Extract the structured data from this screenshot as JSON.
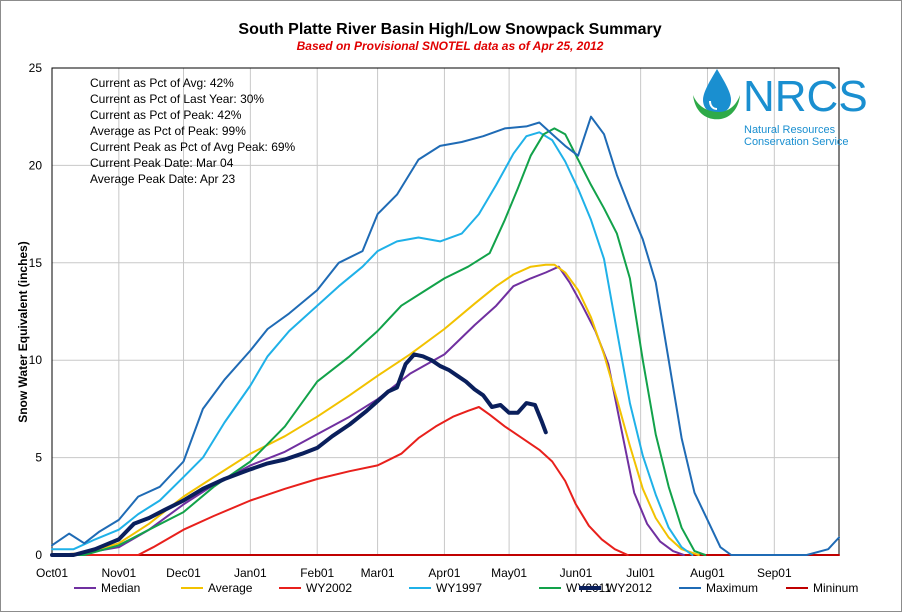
{
  "chart_data": {
    "type": "line",
    "title": "South Platte River Basin High/Low Snowpack Summary",
    "subtitle": "Based on Provisional SNOTEL data as of Apr 25, 2012",
    "ylabel": "Snow Water Equivalent (inches)",
    "xlabel": "",
    "ylim": [
      0,
      25
    ],
    "yticks": [
      "0",
      "5",
      "10",
      "15",
      "20",
      "25"
    ],
    "xticks": [
      "Oct01",
      "Nov01",
      "Dec01",
      "Jan01",
      "Feb01",
      "Mar01",
      "Apr01",
      "May01",
      "Jun01",
      "Jul01",
      "Aug01",
      "Sep01"
    ],
    "stats": [
      "Current as Pct of Avg: 42%",
      "Current as Pct of Last Year: 30%",
      "Current as Pct of Peak: 42%",
      "Average as Pct of Peak: 99%",
      "Current Peak as Pct of Avg Peak: 69%",
      "Current Peak Date: Mar 04",
      "Average Peak Date: Apr 23"
    ],
    "legend_position": "bottom",
    "grid": true,
    "series": [
      {
        "name": "Median",
        "color": "#7030a0",
        "width": 2,
        "points": [
          [
            0,
            0
          ],
          [
            15,
            0.1
          ],
          [
            31,
            0.4
          ],
          [
            45,
            1.3
          ],
          [
            61,
            2.6
          ],
          [
            75,
            3.6
          ],
          [
            92,
            4.6
          ],
          [
            108,
            5.3
          ],
          [
            123,
            6.2
          ],
          [
            138,
            7.1
          ],
          [
            151,
            8.0
          ],
          [
            166,
            9.3
          ],
          [
            182,
            10.3
          ],
          [
            196,
            11.8
          ],
          [
            206,
            12.8
          ],
          [
            214,
            13.8
          ],
          [
            222,
            14.2
          ],
          [
            229,
            14.5
          ],
          [
            235,
            14.8
          ],
          [
            240,
            14.0
          ],
          [
            246,
            12.8
          ],
          [
            252,
            11.5
          ],
          [
            258,
            9.8
          ],
          [
            264,
            6.5
          ],
          [
            270,
            3.2
          ],
          [
            276,
            1.6
          ],
          [
            282,
            0.7
          ],
          [
            288,
            0.2
          ],
          [
            293,
            0
          ]
        ]
      },
      {
        "name": "Average",
        "color": "#f2c200",
        "width": 2,
        "points": [
          [
            0,
            0
          ],
          [
            15,
            0.1
          ],
          [
            31,
            0.6
          ],
          [
            45,
            1.6
          ],
          [
            61,
            3.0
          ],
          [
            75,
            4.0
          ],
          [
            92,
            5.2
          ],
          [
            108,
            6.1
          ],
          [
            123,
            7.1
          ],
          [
            138,
            8.2
          ],
          [
            151,
            9.2
          ],
          [
            166,
            10.3
          ],
          [
            182,
            11.6
          ],
          [
            196,
            12.9
          ],
          [
            206,
            13.8
          ],
          [
            214,
            14.4
          ],
          [
            222,
            14.8
          ],
          [
            229,
            14.9
          ],
          [
            233,
            14.9
          ],
          [
            238,
            14.5
          ],
          [
            244,
            13.6
          ],
          [
            250,
            12.2
          ],
          [
            256,
            10.3
          ],
          [
            262,
            8.0
          ],
          [
            268,
            5.6
          ],
          [
            274,
            3.4
          ],
          [
            280,
            1.9
          ],
          [
            286,
            0.9
          ],
          [
            292,
            0.3
          ],
          [
            300,
            0
          ]
        ]
      },
      {
        "name": "WY2002",
        "color": "#e8201c",
        "width": 2,
        "points": [
          [
            0,
            0
          ],
          [
            15,
            0
          ],
          [
            31,
            0
          ],
          [
            40,
            0
          ],
          [
            47,
            0.4
          ],
          [
            61,
            1.3
          ],
          [
            75,
            2.0
          ],
          [
            92,
            2.8
          ],
          [
            108,
            3.4
          ],
          [
            123,
            3.9
          ],
          [
            138,
            4.3
          ],
          [
            151,
            4.6
          ],
          [
            162,
            5.2
          ],
          [
            170,
            6.0
          ],
          [
            178,
            6.6
          ],
          [
            186,
            7.1
          ],
          [
            193,
            7.4
          ],
          [
            198,
            7.6
          ],
          [
            203,
            7.2
          ],
          [
            210,
            6.6
          ],
          [
            218,
            6.0
          ],
          [
            226,
            5.4
          ],
          [
            232,
            4.8
          ],
          [
            238,
            3.8
          ],
          [
            243,
            2.6
          ],
          [
            249,
            1.5
          ],
          [
            255,
            0.8
          ],
          [
            261,
            0.3
          ],
          [
            267,
            0
          ]
        ]
      },
      {
        "name": "WY1997",
        "color": "#1fb1e8",
        "width": 2,
        "points": [
          [
            0,
            0.3
          ],
          [
            10,
            0.3
          ],
          [
            20,
            0.8
          ],
          [
            31,
            1.3
          ],
          [
            40,
            2.1
          ],
          [
            50,
            2.8
          ],
          [
            61,
            4.0
          ],
          [
            70,
            5.0
          ],
          [
            80,
            6.8
          ],
          [
            92,
            8.7
          ],
          [
            100,
            10.2
          ],
          [
            110,
            11.5
          ],
          [
            123,
            12.8
          ],
          [
            133,
            13.8
          ],
          [
            144,
            14.8
          ],
          [
            151,
            15.6
          ],
          [
            160,
            16.1
          ],
          [
            170,
            16.3
          ],
          [
            180,
            16.1
          ],
          [
            190,
            16.5
          ],
          [
            198,
            17.5
          ],
          [
            206,
            19.0
          ],
          [
            214,
            20.6
          ],
          [
            220,
            21.5
          ],
          [
            226,
            21.7
          ],
          [
            232,
            21.3
          ],
          [
            238,
            20.2
          ],
          [
            244,
            18.8
          ],
          [
            250,
            17.2
          ],
          [
            256,
            15.2
          ],
          [
            262,
            11.5
          ],
          [
            268,
            7.8
          ],
          [
            274,
            5.1
          ],
          [
            280,
            3.1
          ],
          [
            286,
            1.4
          ],
          [
            292,
            0.4
          ],
          [
            297,
            0
          ]
        ]
      },
      {
        "name": "WY2011",
        "color": "#12a24a",
        "width": 2,
        "points": [
          [
            0,
            0
          ],
          [
            15,
            0
          ],
          [
            31,
            0.5
          ],
          [
            45,
            1.3
          ],
          [
            61,
            2.2
          ],
          [
            75,
            3.5
          ],
          [
            92,
            4.8
          ],
          [
            108,
            6.6
          ],
          [
            123,
            8.9
          ],
          [
            138,
            10.2
          ],
          [
            151,
            11.5
          ],
          [
            162,
            12.8
          ],
          [
            172,
            13.5
          ],
          [
            182,
            14.2
          ],
          [
            193,
            14.8
          ],
          [
            203,
            15.5
          ],
          [
            210,
            17.2
          ],
          [
            216,
            18.8
          ],
          [
            222,
            20.5
          ],
          [
            228,
            21.6
          ],
          [
            233,
            21.9
          ],
          [
            238,
            21.6
          ],
          [
            244,
            20.3
          ],
          [
            250,
            19.0
          ],
          [
            256,
            17.8
          ],
          [
            262,
            16.5
          ],
          [
            268,
            14.2
          ],
          [
            274,
            10.0
          ],
          [
            280,
            6.2
          ],
          [
            286,
            3.5
          ],
          [
            292,
            1.4
          ],
          [
            298,
            0.2
          ],
          [
            303,
            0
          ]
        ]
      },
      {
        "name": "WY2012",
        "color": "#0a1f5c",
        "width": 4,
        "points": [
          [
            0,
            0
          ],
          [
            10,
            0
          ],
          [
            20,
            0.3
          ],
          [
            31,
            0.8
          ],
          [
            38,
            1.6
          ],
          [
            45,
            1.9
          ],
          [
            52,
            2.3
          ],
          [
            61,
            2.8
          ],
          [
            70,
            3.4
          ],
          [
            80,
            3.9
          ],
          [
            92,
            4.4
          ],
          [
            100,
            4.7
          ],
          [
            108,
            4.9
          ],
          [
            116,
            5.2
          ],
          [
            123,
            5.5
          ],
          [
            130,
            6.1
          ],
          [
            138,
            6.7
          ],
          [
            146,
            7.4
          ],
          [
            151,
            7.9
          ],
          [
            156,
            8.4
          ],
          [
            160,
            8.6
          ],
          [
            164,
            9.8
          ],
          [
            168,
            10.3
          ],
          [
            172,
            10.2
          ],
          [
            176,
            10.0
          ],
          [
            180,
            9.7
          ],
          [
            184,
            9.5
          ],
          [
            188,
            9.2
          ],
          [
            192,
            8.9
          ],
          [
            196,
            8.5
          ],
          [
            200,
            8.2
          ],
          [
            204,
            7.6
          ],
          [
            208,
            7.7
          ],
          [
            212,
            7.3
          ],
          [
            216,
            7.3
          ],
          [
            220,
            7.8
          ],
          [
            224,
            7.7
          ],
          [
            227,
            6.9
          ],
          [
            229,
            6.3
          ]
        ]
      },
      {
        "name": "Maximum",
        "color": "#1f6bb5",
        "width": 2,
        "points": [
          [
            0,
            0.5
          ],
          [
            8,
            1.1
          ],
          [
            15,
            0.6
          ],
          [
            22,
            1.2
          ],
          [
            31,
            1.8
          ],
          [
            40,
            3.0
          ],
          [
            50,
            3.5
          ],
          [
            61,
            4.8
          ],
          [
            70,
            7.5
          ],
          [
            80,
            9.0
          ],
          [
            92,
            10.5
          ],
          [
            100,
            11.6
          ],
          [
            110,
            12.4
          ],
          [
            123,
            13.6
          ],
          [
            133,
            15.0
          ],
          [
            144,
            15.6
          ],
          [
            151,
            17.5
          ],
          [
            160,
            18.5
          ],
          [
            170,
            20.3
          ],
          [
            180,
            21.0
          ],
          [
            190,
            21.2
          ],
          [
            200,
            21.5
          ],
          [
            210,
            21.9
          ],
          [
            220,
            22.0
          ],
          [
            226,
            22.2
          ],
          [
            232,
            21.6
          ],
          [
            238,
            21.0
          ],
          [
            244,
            20.5
          ],
          [
            250,
            22.5
          ],
          [
            256,
            21.6
          ],
          [
            262,
            19.5
          ],
          [
            268,
            17.8
          ],
          [
            274,
            16.2
          ],
          [
            280,
            14.0
          ],
          [
            286,
            10.0
          ],
          [
            292,
            6.0
          ],
          [
            298,
            3.2
          ],
          [
            304,
            1.8
          ],
          [
            310,
            0.4
          ],
          [
            315,
            0
          ],
          [
            330,
            0
          ],
          [
            350,
            0
          ],
          [
            360,
            0.3
          ],
          [
            365,
            0.9
          ]
        ]
      },
      {
        "name": "Mininum",
        "color": "#c00000",
        "width": 2,
        "points": [
          [
            0,
            0
          ],
          [
            100,
            0
          ],
          [
            200,
            0
          ],
          [
            300,
            0
          ],
          [
            365,
            0
          ]
        ]
      }
    ]
  }
}
